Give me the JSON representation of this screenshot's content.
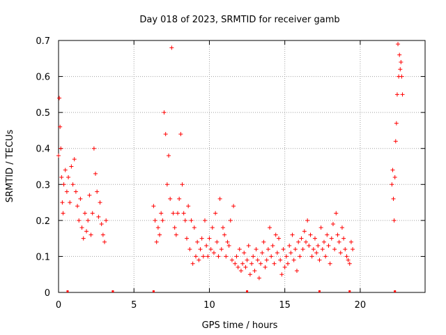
{
  "chart_data": {
    "type": "scatter",
    "title": "Day 018 of 2023, SRMTID for receiver gamb",
    "xlabel": "GPS time / hours",
    "ylabel": "SRMTID / TECUs",
    "xlim": [
      0,
      24.3
    ],
    "ylim": [
      0,
      0.7
    ],
    "x_ticks": [
      0,
      5,
      10,
      15,
      20
    ],
    "y_ticks": [
      0,
      0.1,
      0.2,
      0.3,
      0.4,
      0.5,
      0.6,
      0.7
    ],
    "x_tick_labels": [
      "0",
      "5",
      "10",
      "15",
      "20"
    ],
    "y_tick_labels": [
      "0",
      "0.1",
      "0.2",
      "0.3",
      "0.4",
      "0.5",
      "0.6",
      "0.7"
    ],
    "grid": true,
    "marker": "+",
    "series": [
      {
        "name": "SRMTID",
        "color": "#ff0000",
        "segments": [
          {
            "x": [
              0.0,
              0.05,
              0.1,
              0.15,
              0.2,
              0.25,
              0.3,
              0.35,
              0.45,
              0.55,
              0.65,
              0.75,
              0.85,
              0.95,
              1.05,
              1.15,
              1.25,
              1.35,
              1.45,
              1.55,
              1.65,
              1.75,
              1.85,
              1.95,
              2.05,
              2.15,
              2.25,
              2.35,
              2.45,
              2.55,
              2.65,
              2.75,
              2.85,
              2.95,
              3.05,
              3.15
            ],
            "y": [
              0.38,
              0.54,
              0.46,
              0.4,
              0.32,
              0.25,
              0.22,
              0.3,
              0.34,
              0.28,
              0.32,
              0.25,
              0.35,
              0.3,
              0.37,
              0.28,
              0.24,
              0.2,
              0.26,
              0.18,
              0.15,
              0.22,
              0.17,
              0.2,
              0.27,
              0.16,
              0.22,
              0.4,
              0.33,
              0.28,
              0.21,
              0.25,
              0.19,
              0.16,
              0.14,
              0.2
            ]
          },
          {
            "x": [
              6.3,
              6.4,
              6.5,
              6.6,
              6.7,
              6.8,
              6.9,
              7.0,
              7.1,
              7.2,
              7.3,
              7.4,
              7.5,
              7.6,
              7.7,
              7.8,
              7.9,
              8.0,
              8.1,
              8.2,
              8.3,
              8.4,
              8.5,
              8.6,
              8.7,
              8.8,
              8.9,
              9.0,
              9.1,
              9.2,
              9.3,
              9.4,
              9.5,
              9.6,
              9.7,
              9.8,
              9.9,
              10.0,
              10.1,
              10.2,
              10.3,
              10.4,
              10.5,
              10.6,
              10.7,
              10.8,
              10.9,
              11.0,
              11.1,
              11.2,
              11.3,
              11.4,
              11.5,
              11.6,
              11.7,
              11.8,
              11.9,
              12.0,
              12.1,
              12.2,
              12.3,
              12.4,
              12.5,
              12.6,
              12.7,
              12.8,
              12.9,
              13.0,
              13.1,
              13.2,
              13.3,
              13.4,
              13.5,
              13.6,
              13.7,
              13.8,
              13.9,
              14.0,
              14.1,
              14.2,
              14.3,
              14.4,
              14.5,
              14.6,
              14.7,
              14.8,
              14.9,
              15.0,
              15.1,
              15.2,
              15.3,
              15.4,
              15.5,
              15.6,
              15.7,
              15.8,
              15.9,
              16.0,
              16.1,
              16.2,
              16.3,
              16.4,
              16.5,
              16.6,
              16.7,
              16.8,
              16.9,
              17.0,
              17.1,
              17.2,
              17.3,
              17.4,
              17.5,
              17.6,
              17.7,
              17.8,
              17.9,
              18.0,
              18.1,
              18.2,
              18.3,
              18.4,
              18.5,
              18.6,
              18.7,
              18.8,
              18.9,
              19.0,
              19.1,
              19.2,
              19.3,
              19.4,
              19.5
            ],
            "y": [
              0.24,
              0.2,
              0.14,
              0.18,
              0.16,
              0.22,
              0.2,
              0.5,
              0.44,
              0.3,
              0.38,
              0.26,
              0.68,
              0.22,
              0.18,
              0.16,
              0.22,
              0.26,
              0.44,
              0.3,
              0.22,
              0.2,
              0.15,
              0.24,
              0.12,
              0.2,
              0.08,
              0.18,
              0.1,
              0.14,
              0.09,
              0.12,
              0.15,
              0.1,
              0.2,
              0.13,
              0.1,
              0.15,
              0.12,
              0.18,
              0.11,
              0.22,
              0.14,
              0.1,
              0.26,
              0.12,
              0.18,
              0.16,
              0.1,
              0.14,
              0.13,
              0.2,
              0.09,
              0.24,
              0.08,
              0.1,
              0.07,
              0.12,
              0.06,
              0.08,
              0.11,
              0.07,
              0.09,
              0.13,
              0.05,
              0.08,
              0.1,
              0.06,
              0.12,
              0.09,
              0.04,
              0.08,
              0.11,
              0.14,
              0.07,
              0.09,
              0.12,
              0.18,
              0.1,
              0.13,
              0.08,
              0.16,
              0.11,
              0.15,
              0.09,
              0.05,
              0.12,
              0.07,
              0.1,
              0.08,
              0.13,
              0.11,
              0.16,
              0.09,
              0.12,
              0.06,
              0.14,
              0.1,
              0.15,
              0.12,
              0.17,
              0.14,
              0.2,
              0.13,
              0.16,
              0.1,
              0.12,
              0.15,
              0.11,
              0.13,
              0.09,
              0.18,
              0.12,
              0.14,
              0.1,
              0.16,
              0.13,
              0.08,
              0.15,
              0.19,
              0.12,
              0.22,
              0.16,
              0.14,
              0.11,
              0.18,
              0.15,
              0.12,
              0.1,
              0.09,
              0.08,
              0.14,
              0.12
            ]
          },
          {
            "x": [
              22.1,
              22.15,
              22.2,
              22.25,
              22.3,
              22.35,
              22.4,
              22.45,
              22.5,
              22.55,
              22.6,
              22.65,
              22.7,
              22.75,
              22.8
            ],
            "y": [
              0.3,
              0.34,
              0.26,
              0.2,
              0.32,
              0.42,
              0.47,
              0.55,
              0.69,
              0.6,
              0.66,
              0.62,
              0.64,
              0.6,
              0.55
            ]
          }
        ]
      }
    ],
    "coverage_markers": [
      {
        "x": 0.6
      },
      {
        "x": 3.6
      },
      {
        "x": 6.3
      },
      {
        "x": 12.5
      },
      {
        "x": 17.3
      },
      {
        "x": 19.3
      },
      {
        "x": 22.3
      }
    ]
  }
}
